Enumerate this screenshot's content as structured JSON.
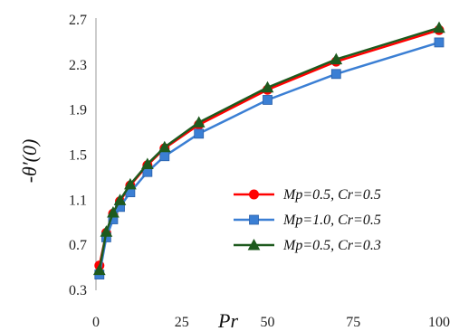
{
  "chart_data": {
    "type": "line",
    "title": "",
    "xlabel": "Pr",
    "ylabel": "-θ′(0)",
    "xlim": [
      0,
      100
    ],
    "ylim": [
      0.3,
      2.7
    ],
    "x_ticks": [
      "0",
      "25",
      "50",
      "75",
      "100"
    ],
    "y_ticks": [
      "0.3",
      "0.7",
      "1.1",
      "1.5",
      "1.9",
      "2.3",
      "2.7"
    ],
    "grid": false,
    "legend_position": "right-middle",
    "x": [
      1,
      3,
      5,
      7,
      10,
      15,
      20,
      30,
      50,
      70,
      100
    ],
    "series": [
      {
        "name": "Mp=0.5, Cr=0.5",
        "color": "#ff0000",
        "marker": "circle",
        "values": [
          0.52,
          0.81,
          0.98,
          1.09,
          1.23,
          1.41,
          1.56,
          1.77,
          2.08,
          2.33,
          2.61
        ]
      },
      {
        "name": "Mp=1.0, Cr=0.5",
        "color": "#3b7fd4",
        "marker": "square",
        "values": [
          0.44,
          0.77,
          0.93,
          1.04,
          1.17,
          1.35,
          1.49,
          1.69,
          1.99,
          2.22,
          2.5
        ]
      },
      {
        "name": "Mp=0.5, Cr=0.3",
        "color": "#1e5a1e",
        "marker": "triangle",
        "values": [
          0.48,
          0.82,
          0.99,
          1.1,
          1.24,
          1.42,
          1.57,
          1.79,
          2.1,
          2.35,
          2.63
        ]
      }
    ]
  }
}
